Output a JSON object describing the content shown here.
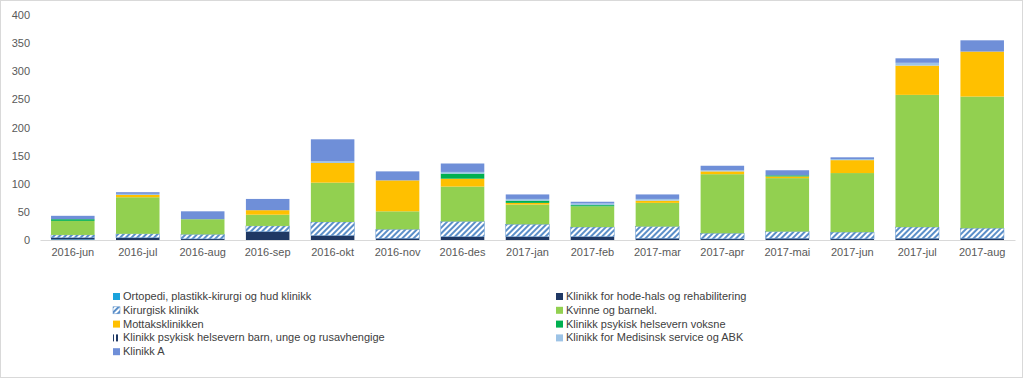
{
  "chart_data": {
    "type": "bar",
    "stacked": true,
    "grid": false,
    "legend": "bottom",
    "categories": [
      "2016-jun",
      "2016-jul",
      "2016-aug",
      "2016-sep",
      "2016-okt",
      "2016-nov",
      "2016-des",
      "2017-jan",
      "2017-feb",
      "2017-mar",
      "2017-apr",
      "2017-mai",
      "2017-jun",
      "2017-jul",
      "2017-aug"
    ],
    "ylim": [
      0,
      400
    ],
    "yticks": [
      0,
      50,
      100,
      150,
      200,
      250,
      300,
      350,
      400
    ],
    "series": [
      {
        "name": "Ortopedi, plastikk-kirurgi og hud klinikk",
        "color": "#1aa3dc",
        "values": [
          1,
          0,
          0,
          0,
          0,
          0,
          0,
          0,
          0,
          0,
          0,
          0,
          0,
          0,
          0
        ]
      },
      {
        "name": "Klinikk for hode-hals og rehabilitering",
        "color": "#1f3864",
        "values": [
          3,
          4,
          2,
          15,
          8,
          3,
          6,
          6,
          6,
          3,
          2,
          3,
          2,
          3,
          3
        ]
      },
      {
        "name": "Kirurgisk klinikk",
        "color": "#5b8fc9",
        "values": [
          5,
          7,
          8,
          10,
          24,
          16,
          27,
          22,
          17,
          21,
          10,
          12,
          12,
          20,
          18
        ]
      },
      {
        "name": "Kvinne og barnekl.",
        "color": "#92d050",
        "values": [
          25,
          65,
          27,
          20,
          70,
          32,
          62,
          35,
          37,
          42,
          105,
          95,
          105,
          235,
          234
        ]
      },
      {
        "name": "Mottaksklinikken",
        "color": "#ffc000",
        "values": [
          0,
          4,
          0,
          8,
          35,
          55,
          14,
          3,
          0,
          4,
          5,
          3,
          23,
          52,
          80
        ]
      },
      {
        "name": "Klinikk psykisk helsevern voksne",
        "color": "#00b050",
        "values": [
          3,
          0,
          0,
          0,
          0,
          0,
          9,
          4,
          2,
          0,
          0,
          2,
          0,
          0,
          0
        ]
      },
      {
        "name": "Klinikk psykisk helsevern barn, unge og rusavhengige",
        "color": "#1f3864",
        "values": [
          0,
          0,
          0,
          0,
          0,
          0,
          0,
          0,
          0,
          0,
          0,
          0,
          0,
          0,
          0
        ]
      },
      {
        "name": "Klinikk for Medisinsk service og ABK",
        "color": "#9dc3e6",
        "values": [
          0,
          2,
          0,
          0,
          3,
          0,
          3,
          3,
          3,
          3,
          2,
          0,
          2,
          5,
          0
        ]
      },
      {
        "name": "Klinikk A",
        "color": "#6f8fd8",
        "values": [
          6,
          3,
          14,
          20,
          39,
          16,
          15,
          8,
          3,
          8,
          8,
          9,
          3,
          8,
          20
        ]
      }
    ]
  }
}
